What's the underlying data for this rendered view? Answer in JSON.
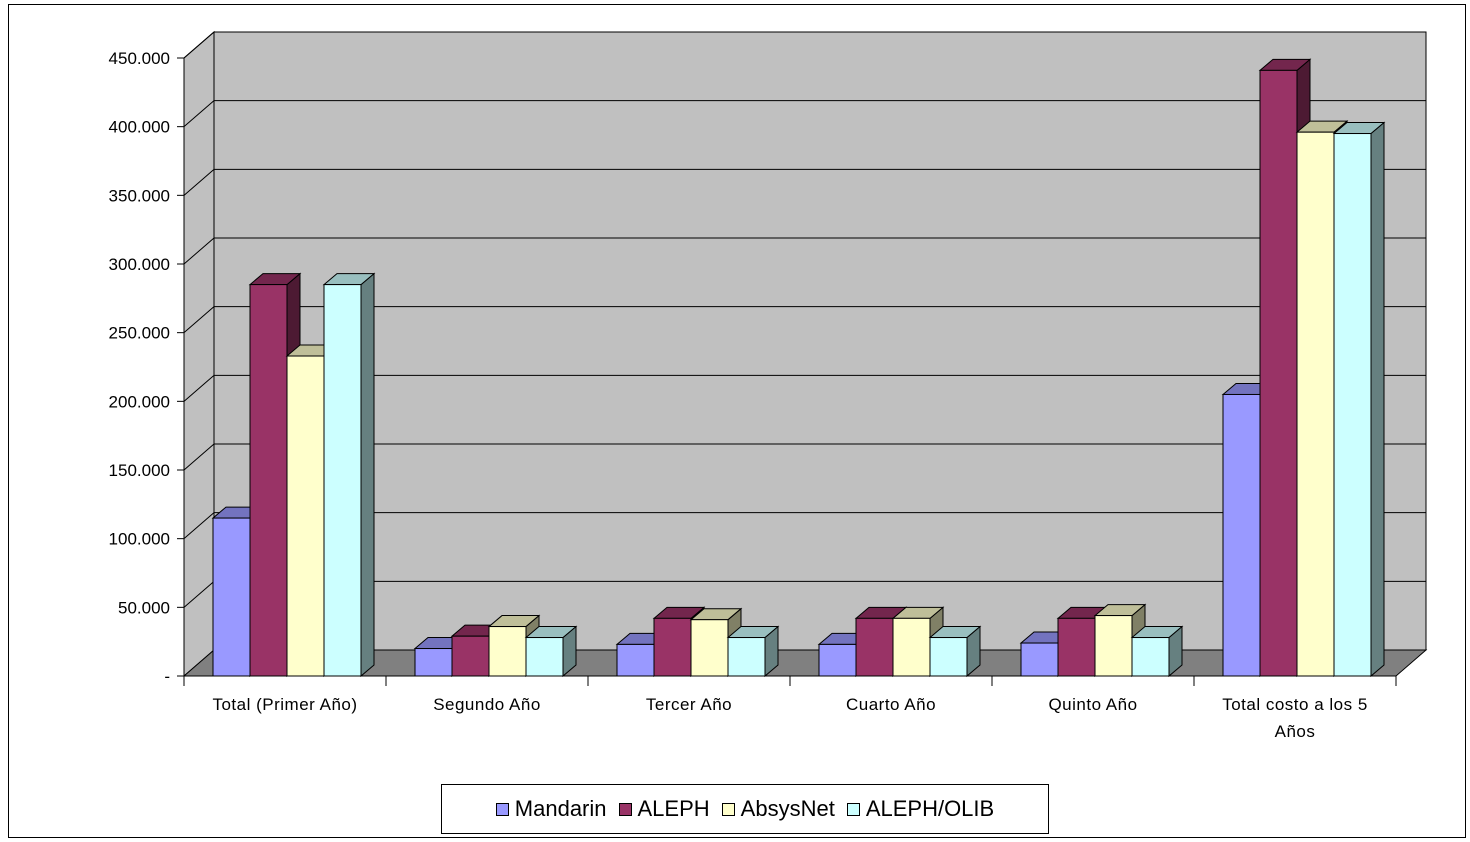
{
  "chart_data": {
    "type": "bar",
    "title": "",
    "xlabel": "",
    "ylabel": "",
    "ylim": [
      0,
      450000
    ],
    "y_ticks": [
      "-",
      "50.000",
      "100.000",
      "150.000",
      "200.000",
      "250.000",
      "300.000",
      "350.000",
      "400.000",
      "450.000"
    ],
    "categories": [
      "Total (Primer Año)",
      "Segundo Año",
      "Tercer Año",
      "Cuarto  Año",
      "Quinto Año",
      "Total costo a los 5 Años"
    ],
    "category_lines": [
      [
        "Total (Primer Año)"
      ],
      [
        "Segundo Año"
      ],
      [
        "Tercer Año"
      ],
      [
        "Cuarto  Año"
      ],
      [
        "Quinto Año"
      ],
      [
        "Total costo a los 5",
        "Años"
      ]
    ],
    "series": [
      {
        "name": "Mandarin",
        "color": "#9999ff",
        "values": [
          115000,
          20000,
          23000,
          23000,
          24000,
          205000
        ]
      },
      {
        "name": "ALEPH",
        "color": "#993366",
        "values": [
          285000,
          29000,
          42000,
          42000,
          42000,
          441000
        ]
      },
      {
        "name": "AbsysNet",
        "color": "#ffffcc",
        "values": [
          233000,
          36000,
          41000,
          42000,
          44000,
          396000
        ]
      },
      {
        "name": "ALEPH/OLIB",
        "color": "#ccffff",
        "values": [
          285000,
          28000,
          28000,
          28000,
          28000,
          395000
        ]
      }
    ],
    "grid": true,
    "legend_position": "bottom",
    "wall_color": "#c0c0c0",
    "floor_color": "#808080"
  },
  "legend": {
    "items": [
      "Mandarin",
      "ALEPH",
      "AbsysNet",
      "ALEPH/OLIB"
    ]
  }
}
